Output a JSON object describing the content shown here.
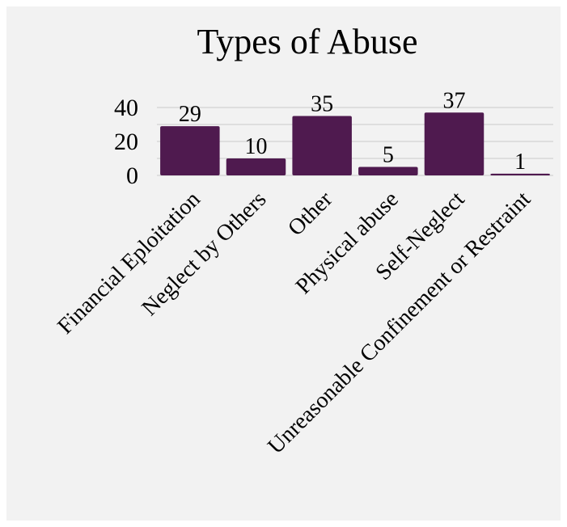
{
  "chart_data": {
    "type": "bar",
    "title": "Types of Abuse",
    "xlabel": "",
    "ylabel": "",
    "categories": [
      "Financial Eploitation",
      "Neglect by Others",
      "Other",
      "Physical abuse",
      "Self-Neglect",
      "Unreasonable Confinement or Restraint"
    ],
    "values": [
      29,
      10,
      35,
      5,
      37,
      1
    ],
    "ylim": [
      0,
      40
    ],
    "yticks": [
      "0",
      "20",
      "40"
    ],
    "data_labels": [
      "29",
      "10",
      "35",
      "5",
      "37",
      "1"
    ],
    "grid": true,
    "legend": "none",
    "bar_color": "#4f1a4f",
    "grid_color": "#c9c9c9",
    "background_color": "#f2f2f2"
  }
}
